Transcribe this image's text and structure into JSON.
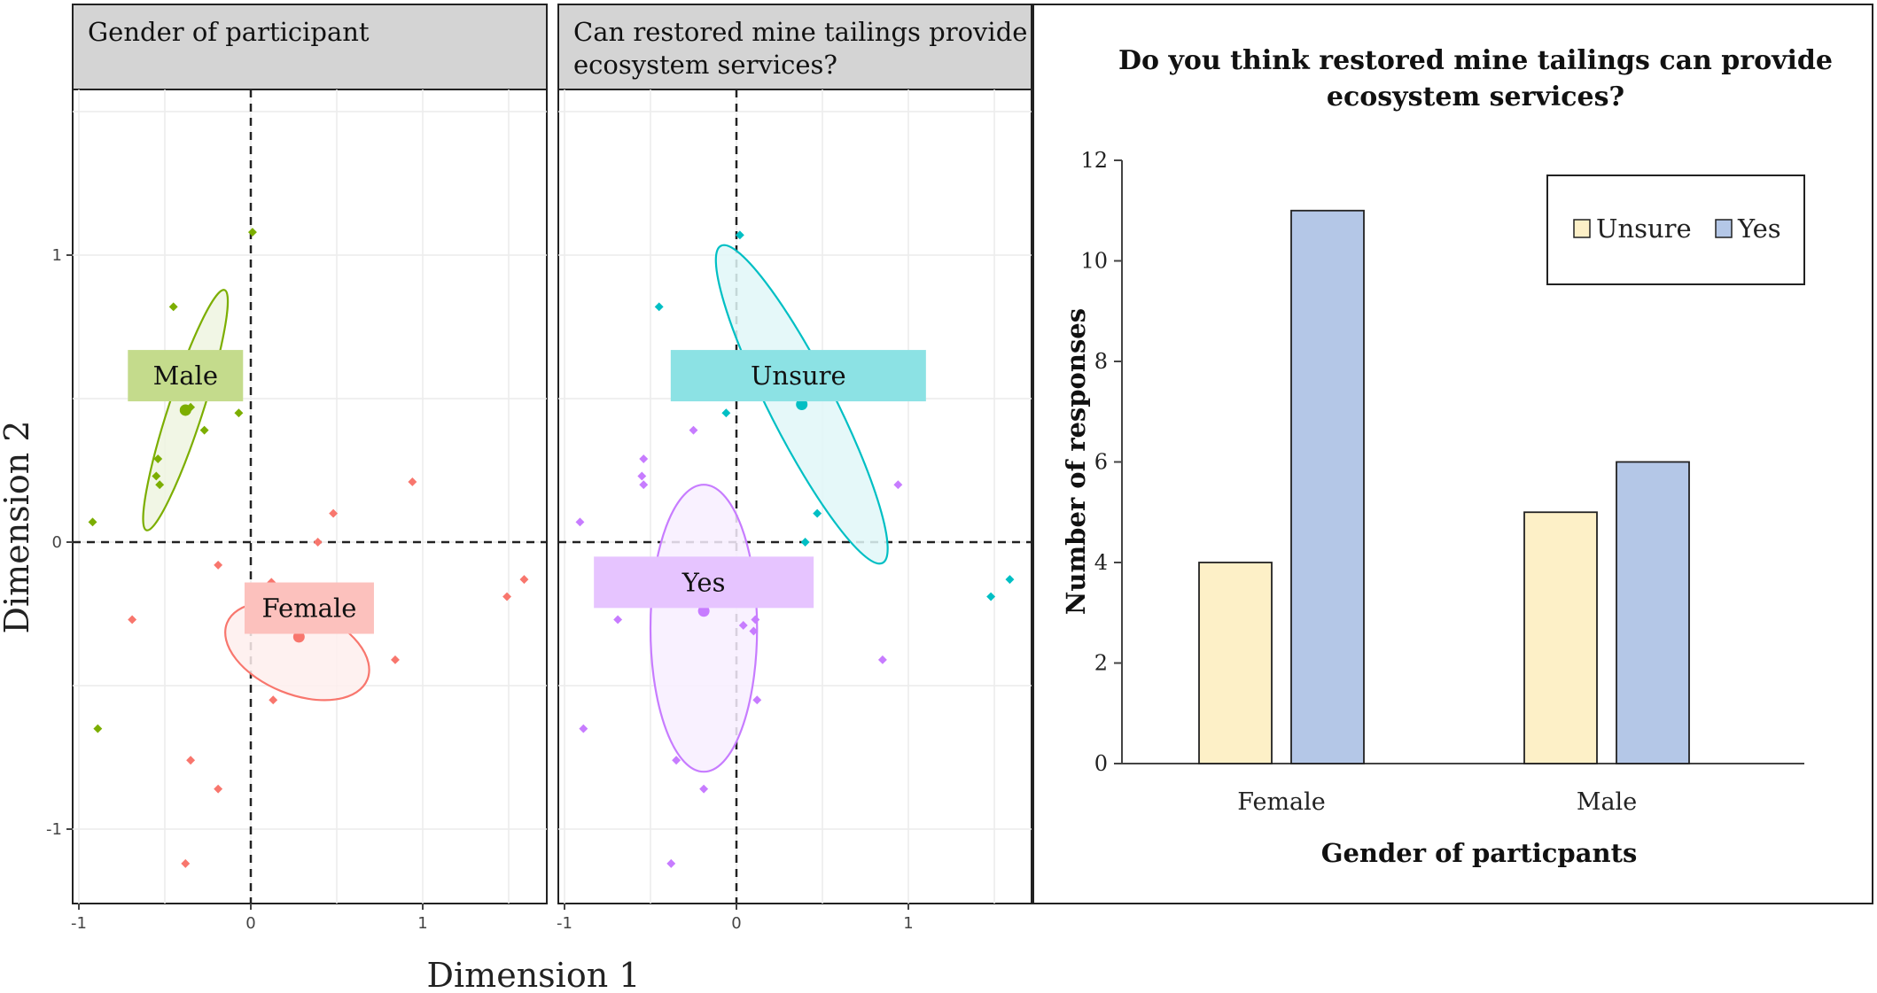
{
  "figure": {
    "y_axis_title": "Dimension 2",
    "x_axis_title": "Dimension 1"
  },
  "chart_data": [
    {
      "type": "scatter",
      "title": "Gender of participant",
      "xlabel": "Dimension 1",
      "ylabel": "Dimension 2",
      "xlim": [
        -1.02,
        1.72
      ],
      "ylim": [
        -1.25,
        1.58
      ],
      "xticks": [
        -1,
        0,
        1
      ],
      "yticks": [
        -1,
        0,
        1
      ],
      "grid": true,
      "reference_lines": {
        "x": 0,
        "y": 0
      },
      "groups": [
        {
          "name": "Male",
          "color": "#7cae00",
          "centroid": [
            -0.38,
            0.46
          ],
          "ellipse": {
            "center": [
              -0.38,
              0.46
            ],
            "rx": 0.1,
            "ry": 0.44,
            "angle_deg": 18
          },
          "label_at": [
            -0.38,
            0.58
          ],
          "points": [
            [
              -0.45,
              0.82
            ],
            [
              -0.35,
              0.47
            ],
            [
              -0.27,
              0.39
            ],
            [
              -0.07,
              0.45
            ],
            [
              -0.54,
              0.29
            ],
            [
              -0.55,
              0.23
            ],
            [
              -0.53,
              0.2
            ],
            [
              0.01,
              1.08
            ],
            [
              -0.92,
              0.07
            ],
            [
              -0.89,
              -0.65
            ]
          ]
        },
        {
          "name": "Female",
          "color": "#f8766d",
          "centroid": [
            0.28,
            -0.33
          ],
          "ellipse": {
            "center": [
              0.27,
              -0.38
            ],
            "rx": 0.44,
            "ry": 0.15,
            "angle_deg": 22
          },
          "label_at": [
            0.34,
            -0.23
          ],
          "points": [
            [
              0.48,
              0.1
            ],
            [
              0.39,
              0.0
            ],
            [
              0.94,
              0.21
            ],
            [
              -0.19,
              -0.08
            ],
            [
              0.12,
              -0.14
            ],
            [
              -0.69,
              -0.27
            ],
            [
              0.84,
              -0.41
            ],
            [
              0.13,
              -0.55
            ],
            [
              1.49,
              -0.19
            ],
            [
              1.59,
              -0.13
            ],
            [
              -0.35,
              -0.76
            ],
            [
              -0.19,
              -0.86
            ],
            [
              -0.38,
              -1.12
            ]
          ]
        }
      ]
    },
    {
      "type": "scatter",
      "title": "Can restored mine tailings provide ecosystem services?",
      "xlabel": "Dimension 1",
      "ylabel": "Dimension 2",
      "xlim": [
        -1.02,
        1.72
      ],
      "ylim": [
        -1.25,
        1.58
      ],
      "xticks": [
        -1,
        0,
        1
      ],
      "yticks": [
        -1,
        0,
        1
      ],
      "grid": true,
      "reference_lines": {
        "x": 0,
        "y": 0
      },
      "groups": [
        {
          "name": "Unsure",
          "color": "#00bfc4",
          "centroid": [
            0.38,
            0.48
          ],
          "ellipse": {
            "center": [
              0.38,
              0.48
            ],
            "rx": 0.19,
            "ry": 0.62,
            "angle_deg": -27
          },
          "label_at": [
            0.36,
            0.58
          ],
          "points": [
            [
              0.02,
              1.07
            ],
            [
              -0.45,
              0.82
            ],
            [
              -0.06,
              0.45
            ],
            [
              0.38,
              0.48
            ],
            [
              0.47,
              0.1
            ],
            [
              0.4,
              0.0
            ],
            [
              1.48,
              -0.19
            ],
            [
              1.59,
              -0.13
            ]
          ]
        },
        {
          "name": "Yes",
          "color": "#c77cff",
          "centroid": [
            -0.19,
            -0.24
          ],
          "ellipse": {
            "center": [
              -0.19,
              -0.3
            ],
            "rx": 0.31,
            "ry": 0.5,
            "angle_deg": 0
          },
          "label_at": [
            -0.19,
            -0.14
          ],
          "points": [
            [
              -0.25,
              0.39
            ],
            [
              -0.54,
              0.29
            ],
            [
              -0.55,
              0.23
            ],
            [
              -0.54,
              0.2
            ],
            [
              0.94,
              0.2
            ],
            [
              -0.91,
              0.07
            ],
            [
              -0.69,
              -0.27
            ],
            [
              0.11,
              -0.27
            ],
            [
              0.04,
              -0.29
            ],
            [
              0.1,
              -0.31
            ],
            [
              0.85,
              -0.41
            ],
            [
              0.12,
              -0.55
            ],
            [
              -0.89,
              -0.65
            ],
            [
              -0.35,
              -0.76
            ],
            [
              -0.19,
              -0.86
            ],
            [
              -0.38,
              -1.12
            ]
          ]
        }
      ]
    },
    {
      "type": "bar",
      "title": "Do you think restored mine tailings can provide ecosystem services?",
      "xlabel": "Gender of particpants",
      "ylabel": "Number of responses",
      "categories": [
        "Female",
        "Male"
      ],
      "series": [
        {
          "name": "Unsure",
          "values": [
            4,
            5
          ],
          "color": "#fdf0c7"
        },
        {
          "name": "Yes",
          "values": [
            11,
            6
          ],
          "color": "#b4c7e7"
        }
      ],
      "ylim": [
        0,
        12
      ],
      "yticks": [
        0,
        2,
        4,
        6,
        8,
        10,
        12
      ],
      "grid": false,
      "legend": "top-right"
    }
  ]
}
